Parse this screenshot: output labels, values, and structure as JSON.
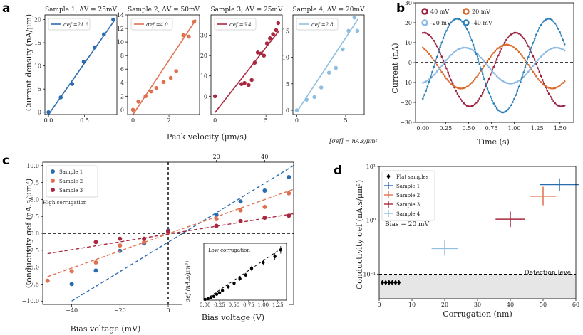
{
  "figure": {
    "panel_letters": [
      "a",
      "b",
      "c",
      "d"
    ],
    "colors": {
      "blue": "#2b6cb0",
      "orange": "#e07050",
      "darkred": "#a8283f",
      "lightblue": "#8fbfe0",
      "b_40": "#9b2040",
      "b_20": "#d96a2c",
      "b_m20": "#89b8e6",
      "b_m40": "#2a7fb8",
      "grey": "#e6e6e6"
    }
  },
  "chart_data": [
    {
      "id": "a",
      "type": "scatter",
      "shared_xlabel": "Peak velocity (μm/s)",
      "shared_ylabel": "Current density (nA/μm)",
      "units_note": "[σef] = nA.s/μm²",
      "subplots": [
        {
          "title": "Sample 1, ΔV = 25mV",
          "legend": "σef =21.6",
          "color": "#2b6cb0",
          "xlim": [
            -0.05,
            0.95
          ],
          "ylim": [
            -0.5,
            21
          ],
          "xticks": [
            0,
            0.5
          ],
          "xticklabels": [
            "0.0",
            "0.5"
          ],
          "yticks": [
            0,
            5,
            10,
            15,
            20
          ],
          "yticklabels": [
            "0",
            "5",
            "10",
            "15",
            "20"
          ],
          "x": [
            0.0,
            0.17,
            0.33,
            0.49,
            0.64,
            0.77,
            0.9
          ],
          "y": [
            0.0,
            3.2,
            6.1,
            10.9,
            14.0,
            16.8,
            20.0
          ],
          "fit": {
            "x": [
              0.0,
              0.92
            ],
            "y": [
              -0.5,
              19.9
            ]
          }
        },
        {
          "title": "Sample 2, ΔV = 50mV",
          "legend": "σef =4.0",
          "color": "#e07050",
          "xlim": [
            -0.3,
            3.7
          ],
          "ylim": [
            -0.7,
            14
          ],
          "xticks": [
            0,
            2
          ],
          "xticklabels": [
            "0",
            "2"
          ],
          "yticks": [
            0,
            2,
            4,
            6,
            8,
            10,
            12,
            14
          ],
          "yticklabels": [
            "0",
            "2",
            "4",
            "6",
            "8",
            "10",
            "12",
            "14"
          ],
          "x": [
            0.0,
            0.3,
            0.7,
            1.0,
            1.3,
            1.7,
            2.1,
            2.4,
            2.8,
            3.1,
            3.4
          ],
          "y": [
            0.0,
            1.2,
            2.0,
            2.7,
            3.2,
            4.1,
            4.7,
            5.7,
            11.0,
            10.8,
            13.0
          ],
          "fit": {
            "x": [
              0.0,
              3.5
            ],
            "y": [
              -0.7,
              13.3
            ]
          }
        },
        {
          "title": "Sample 3, ΔV = 25mV",
          "legend": "σef =6.4",
          "color": "#a8283f",
          "xlim": [
            -0.4,
            6.6
          ],
          "ylim": [
            -9,
            40
          ],
          "xticks": [
            0,
            5
          ],
          "xticklabels": [
            "0",
            "5"
          ],
          "yticks": [
            0,
            10,
            20,
            30
          ],
          "yticklabels": [
            "0",
            "10",
            "20",
            "30"
          ],
          "x": [
            0.0,
            2.6,
            2.9,
            3.3,
            3.6,
            3.9,
            4.2,
            4.5,
            4.8,
            5.1,
            5.4,
            5.7,
            6.0,
            6.2
          ],
          "y": [
            0.0,
            6.0,
            6.5,
            5.5,
            8.0,
            16.5,
            21.5,
            21.0,
            20.0,
            26.0,
            28.5,
            30.5,
            32.5,
            36.0
          ],
          "fit": {
            "x": [
              0.0,
              6.3
            ],
            "y": [
              -8.0,
              32.3
            ]
          }
        },
        {
          "title": "Sample 4, ΔV = 20mV",
          "legend": "σef =2.8",
          "color": "#8fbfe0",
          "xlim": [
            -0.4,
            6.9
          ],
          "ylim": [
            -0.8,
            18
          ],
          "xticks": [
            0,
            5
          ],
          "xticklabels": [
            "0",
            "5"
          ],
          "yticks": [
            0,
            5,
            10,
            15
          ],
          "yticklabels": [
            "0",
            "5",
            "10",
            "15"
          ],
          "x": [
            0.0,
            1.0,
            1.8,
            2.5,
            3.3,
            4.0,
            4.7,
            5.3,
            5.9,
            6.2
          ],
          "y": [
            0.0,
            2.0,
            2.5,
            4.3,
            7.1,
            8.0,
            11.5,
            15.0,
            17.5,
            15.0
          ],
          "fit": {
            "x": [
              0.0,
              6.3
            ],
            "y": [
              -0.3,
              17.3
            ]
          }
        }
      ]
    },
    {
      "id": "b",
      "type": "line",
      "xlabel": "Time (s)",
      "ylabel": "Current (nA)",
      "xlim": [
        -0.08,
        1.65
      ],
      "ylim": [
        -30,
        30
      ],
      "xticks": [
        0.0,
        0.25,
        0.5,
        0.75,
        1.0,
        1.25,
        1.5
      ],
      "xticklabels": [
        "0.00",
        "0.25",
        "0.50",
        "0.75",
        "1.00",
        "1.25",
        "1.50"
      ],
      "yticks": [
        -30,
        -20,
        -10,
        0,
        10,
        20,
        30
      ],
      "yticklabels": [
        "−30",
        "−20",
        "−10",
        "0",
        "10",
        "20",
        "30"
      ],
      "t_range": [
        0.0,
        1.55
      ],
      "series": [
        {
          "name": "40 mV",
          "color": "#9b2040",
          "model": "sin",
          "offset": -3.5,
          "amp": 18.5,
          "freq": 1.0,
          "phase_deg": 85
        },
        {
          "name": "20 mV",
          "color": "#d96a2c",
          "model": "sin",
          "offset": -2.0,
          "amp": 11.0,
          "freq": 1.0,
          "phase_deg": 120
        },
        {
          "name": "-20 mV",
          "color": "#89b8e6",
          "model": "sin",
          "offset": -1.5,
          "amp": 9.0,
          "freq": 1.0,
          "phase_deg": -75
        },
        {
          "name": "-40 mV",
          "color": "#2a7fb8",
          "model": "sin",
          "offset": -1.5,
          "amp": 23.5,
          "freq": 1.0,
          "phase_deg": -45
        }
      ],
      "reference_line": 0
    },
    {
      "id": "c",
      "type": "scatter",
      "xlabel": "Bias voltage (mV)",
      "ylabel": "Conductivity σef (nA.s/μm²)",
      "xlim": [
        -52,
        52
      ],
      "ylim": [
        -10.5,
        10.5
      ],
      "xticks": [
        -40,
        -20,
        0,
        20,
        40
      ],
      "xticklabels": [
        "−40",
        "−20",
        "0",
        "20",
        "40"
      ],
      "top_xticks": [
        20,
        40
      ],
      "top_xticklabels": [
        "20",
        "40"
      ],
      "yticks": [
        -10,
        -7.5,
        -5,
        -2.5,
        0,
        2.5,
        5,
        7.5,
        10
      ],
      "yticklabels": [
        "−10.0",
        "−7.5",
        "−5.0",
        "−2.5",
        "0.0",
        "2.5",
        "5.0",
        "7.5",
        "10.0"
      ],
      "annotation": "High corrugation",
      "series": [
        {
          "name": "Sample 1",
          "color": "#2b6cb0",
          "x": [
            -40,
            -30,
            -20,
            -10,
            0,
            20,
            30,
            40,
            50
          ],
          "y": [
            -7.5,
            -5.5,
            -2.6,
            -1.5,
            0.4,
            2.7,
            4.7,
            6.3,
            8.3
          ],
          "fit": {
            "x": [
              -40,
              52
            ],
            "y": [
              -10.0,
              10.0
            ]
          }
        },
        {
          "name": "Sample 2",
          "color": "#e07050",
          "x": [
            -50,
            -40,
            -30,
            -20,
            -10,
            0,
            20,
            30,
            40,
            50
          ],
          "y": [
            -7.0,
            -5.6,
            -4.3,
            -1.8,
            -1.3,
            0.2,
            2.1,
            3.4,
            3.9,
            5.9
          ],
          "fit": {
            "x": [
              -50,
              52
            ],
            "y": [
              -6.4,
              6.5
            ]
          }
        },
        {
          "name": "Sample 3",
          "color": "#a8283f",
          "x": [
            -30,
            -20,
            -10,
            0,
            20,
            30,
            40,
            50
          ],
          "y": [
            -1.3,
            -0.8,
            -0.8,
            0.3,
            1.1,
            1.8,
            2.3,
            2.6
          ],
          "fit": {
            "x": [
              -50,
              52
            ],
            "y": [
              -3.0,
              2.9
            ]
          }
        }
      ],
      "inset": {
        "annotation": "Low corrugation",
        "xlabel": "Bias voltage (V)",
        "ylabel": "σef (nA.s/μm²)",
        "xlim": [
          -0.02,
          1.4
        ],
        "ylim": [
          -0.5,
          38
        ],
        "xticks": [
          0.0,
          0.25,
          0.5,
          0.75,
          1.0,
          1.25
        ],
        "xticklabels": [
          "0.00",
          "0.25",
          "0.50",
          "0.75",
          "1.00",
          "1.25"
        ],
        "x": [
          0.0,
          0.05,
          0.1,
          0.15,
          0.2,
          0.25,
          0.3,
          0.4,
          0.5,
          0.6,
          0.7,
          0.8,
          1.0,
          1.2,
          1.3
        ],
        "y": [
          0.0,
          0.5,
          1.2,
          2.0,
          3.5,
          4.5,
          6.0,
          8.5,
          11.0,
          14.0,
          16.5,
          21.0,
          25.0,
          29.0,
          33.5
        ],
        "err": [
          0.8,
          0.8,
          0.8,
          1.0,
          1.0,
          1.0,
          1.0,
          1.2,
          1.3,
          1.4,
          1.5,
          1.8,
          2.0,
          2.3,
          2.5
        ],
        "fit": {
          "x": [
            0.0,
            1.35
          ],
          "y": [
            -0.3,
            35.5
          ]
        },
        "color": "#000000"
      }
    },
    {
      "id": "d",
      "type": "scatter",
      "xlabel": "Corrugation (nm)",
      "ylabel": "Conductivity σef (nA.s/μm²)",
      "yscale": "log",
      "xlim": [
        0,
        60
      ],
      "ylim": [
        0.035,
        10
      ],
      "xticks": [
        0,
        10,
        20,
        30,
        40,
        50,
        60
      ],
      "xticklabels": [
        "0",
        "10",
        "20",
        "30",
        "40",
        "50",
        "60"
      ],
      "yticks": [
        0.1,
        1,
        10
      ],
      "yticklabels": [
        "10⁻¹",
        "10⁰",
        "10¹"
      ],
      "annotation": "Bias = 20 mV",
      "detection_level": {
        "value": 0.1,
        "label": "Detection level"
      },
      "series": [
        {
          "name": "Flat samples",
          "color": "#000000",
          "marker": "diamond",
          "x": [
            1.0,
            2.0,
            3.0,
            4.0,
            5.0,
            6.0
          ],
          "y": [
            0.07,
            0.07,
            0.07,
            0.07,
            0.07,
            0.07
          ]
        },
        {
          "name": "Sample 1",
          "color": "#2b6cb0",
          "x": [
            55
          ],
          "y": [
            4.6
          ],
          "xerr": [
            6
          ],
          "yerr_lo": [
            3.5
          ],
          "yerr_hi": [
            6.0
          ]
        },
        {
          "name": "Sample 2",
          "color": "#e07050",
          "x": [
            50
          ],
          "y": [
            2.8
          ],
          "xerr": [
            4
          ],
          "yerr_lo": [
            1.9
          ],
          "yerr_hi": [
            4.2
          ]
        },
        {
          "name": "Sample 3",
          "color": "#a8283f",
          "x": [
            40
          ],
          "y": [
            1.05
          ],
          "xerr": [
            4.5
          ],
          "yerr_lo": [
            0.75
          ],
          "yerr_hi": [
            1.45
          ]
        },
        {
          "name": "Sample 4",
          "color": "#8fbfe0",
          "x": [
            20
          ],
          "y": [
            0.3
          ],
          "xerr": [
            4
          ],
          "yerr_lo": [
            0.22
          ],
          "yerr_hi": [
            0.42
          ]
        }
      ]
    }
  ]
}
